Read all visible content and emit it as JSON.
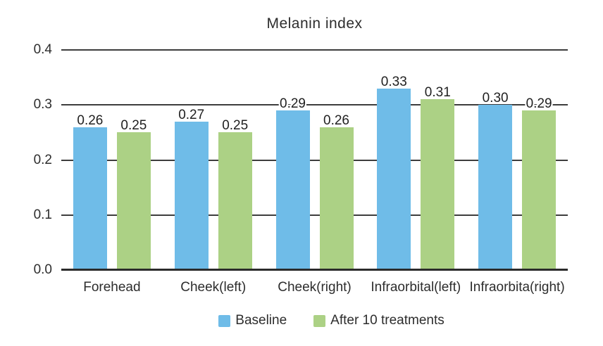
{
  "chart_data": {
    "type": "bar",
    "title": "Melanin index",
    "categories": [
      "Forehead",
      "Cheek(left)",
      "Cheek(right)",
      "Infraorbital(left)",
      "Infraorbita(right)"
    ],
    "series": [
      {
        "name": "Baseline",
        "color": "#6FBCE8",
        "values": [
          0.26,
          0.27,
          0.29,
          0.33,
          0.3
        ]
      },
      {
        "name": "After 10 treatments",
        "color": "#ACD185",
        "values": [
          0.25,
          0.25,
          0.26,
          0.31,
          0.29
        ]
      }
    ],
    "ylim": [
      0,
      0.4
    ],
    "yticks": [
      0.0,
      0.1,
      0.2,
      0.3,
      0.4
    ],
    "ytick_labels": [
      "0.0",
      "0.1",
      "0.2",
      "0.3",
      "0.4"
    ],
    "grid": true,
    "value_label_decimals": 2,
    "legend_position": "bottom",
    "colors": {
      "grid": "#3d3d3d",
      "axis": "#2b2b2b",
      "text": "#2d2d2d"
    }
  }
}
